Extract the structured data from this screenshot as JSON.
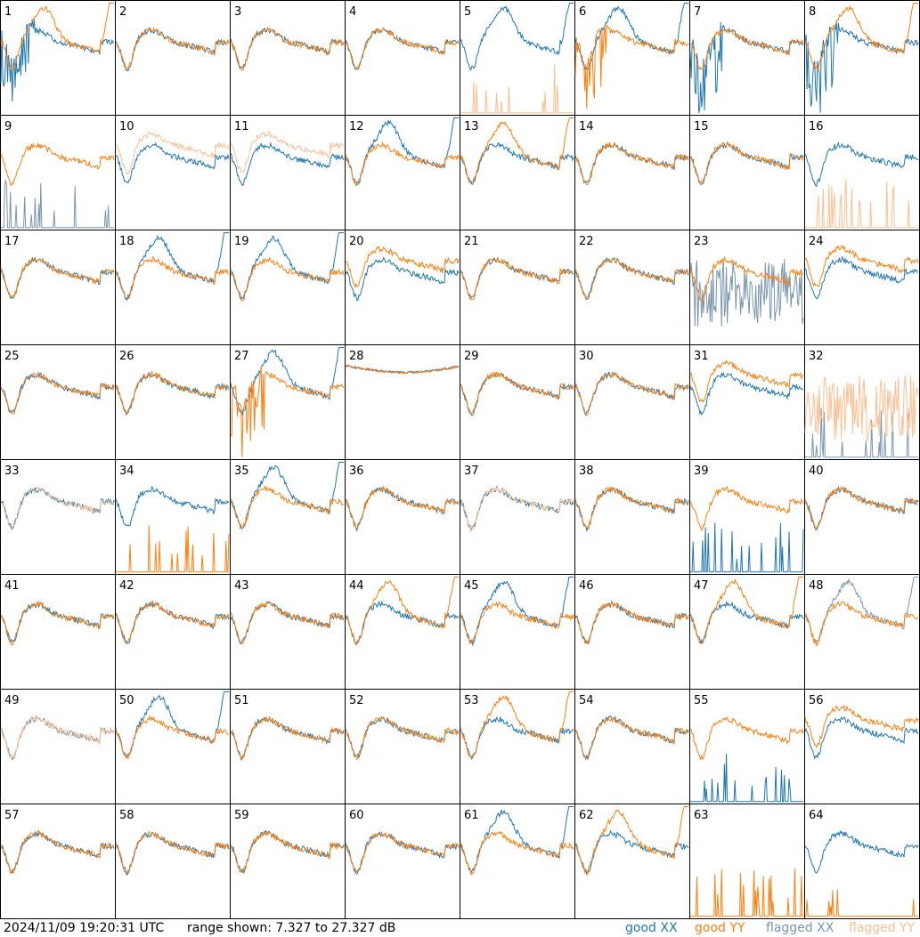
{
  "footer": {
    "timestamp": "2024/11/09 19:20:31 UTC",
    "range_label": "range shown: 7.327 to 27.327 dB",
    "legend": {
      "good_xx": "good XX",
      "good_yy": "good YY",
      "flagged_xx": "flagged XX",
      "flagged_yy": "flagged YY"
    }
  },
  "colors": {
    "good_xx": "#1f77b4",
    "good_yy": "#ff7f0e",
    "flagged_xx": "#7a96ad",
    "flagged_yy": "#fdbf91",
    "panel_border": "#000000"
  },
  "chart_data": {
    "type": "line",
    "layout": "8x8 small multiples",
    "y_range_db": [
      7.327,
      27.327
    ],
    "panels": [
      {
        "id": 1,
        "xx": "good",
        "yy": "good",
        "shape": [
          "spiky",
          "dip"
        ]
      },
      {
        "id": 2,
        "xx": "good",
        "yy": "good",
        "shape": [
          "normal",
          "normal"
        ]
      },
      {
        "id": 3,
        "xx": "good",
        "yy": "good",
        "shape": [
          "normal",
          "normal"
        ]
      },
      {
        "id": 4,
        "xx": "good",
        "yy": "good",
        "shape": [
          "normal",
          "normal"
        ]
      },
      {
        "id": 5,
        "xx": "good",
        "yy": "flagged",
        "shape": [
          "dip",
          "dead"
        ]
      },
      {
        "id": 6,
        "xx": "good",
        "yy": "good",
        "shape": [
          "dip",
          "spiky"
        ]
      },
      {
        "id": 7,
        "xx": "good",
        "yy": "good",
        "shape": [
          "spiky",
          "normal"
        ]
      },
      {
        "id": 8,
        "xx": "good",
        "yy": "good",
        "shape": [
          "spiky",
          "dip"
        ]
      },
      {
        "id": 9,
        "xx": "flagged",
        "yy": "good",
        "shape": [
          "dead",
          "normal"
        ]
      },
      {
        "id": 10,
        "xx": "good",
        "yy": "flagged",
        "shape": [
          "normal",
          "sag"
        ]
      },
      {
        "id": 11,
        "xx": "good",
        "yy": "flagged",
        "shape": [
          "normal",
          "sag"
        ]
      },
      {
        "id": 12,
        "xx": "good",
        "yy": "good",
        "shape": [
          "dip",
          "normal"
        ]
      },
      {
        "id": 13,
        "xx": "good",
        "yy": "good",
        "shape": [
          "normal",
          "dip"
        ]
      },
      {
        "id": 14,
        "xx": "good",
        "yy": "good",
        "shape": [
          "normal",
          "normal"
        ]
      },
      {
        "id": 15,
        "xx": "good",
        "yy": "good",
        "shape": [
          "normal",
          "normal"
        ]
      },
      {
        "id": 16,
        "xx": "good",
        "yy": "flagged",
        "shape": [
          "normal",
          "dead"
        ]
      },
      {
        "id": 17,
        "xx": "good",
        "yy": "good",
        "shape": [
          "normal",
          "normal"
        ]
      },
      {
        "id": 18,
        "xx": "good",
        "yy": "good",
        "shape": [
          "dip",
          "normal"
        ]
      },
      {
        "id": 19,
        "xx": "good",
        "yy": "good",
        "shape": [
          "dip",
          "normal"
        ]
      },
      {
        "id": 20,
        "xx": "good",
        "yy": "good",
        "shape": [
          "normal",
          "sag"
        ]
      },
      {
        "id": 21,
        "xx": "good",
        "yy": "good",
        "shape": [
          "normal",
          "normal"
        ]
      },
      {
        "id": 22,
        "xx": "good",
        "yy": "good",
        "shape": [
          "normal",
          "normal"
        ]
      },
      {
        "id": 23,
        "xx": "flagged",
        "yy": "good",
        "shape": [
          "noisy",
          "normal"
        ]
      },
      {
        "id": 24,
        "xx": "good",
        "yy": "good",
        "shape": [
          "normal",
          "sag"
        ]
      },
      {
        "id": 25,
        "xx": "good",
        "yy": "good",
        "shape": [
          "normal",
          "normal"
        ]
      },
      {
        "id": 26,
        "xx": "good",
        "yy": "good",
        "shape": [
          "normal",
          "normal"
        ]
      },
      {
        "id": 27,
        "xx": "good",
        "yy": "good",
        "shape": [
          "dip",
          "spiky"
        ]
      },
      {
        "id": 28,
        "xx": "good",
        "yy": "good",
        "shape": [
          "flat",
          "flat"
        ]
      },
      {
        "id": 29,
        "xx": "good",
        "yy": "good",
        "shape": [
          "normal",
          "normal"
        ]
      },
      {
        "id": 30,
        "xx": "good",
        "yy": "good",
        "shape": [
          "normal",
          "normal"
        ]
      },
      {
        "id": 31,
        "xx": "good",
        "yy": "good",
        "shape": [
          "normal",
          "sag"
        ]
      },
      {
        "id": 32,
        "xx": "flagged",
        "yy": "flagged",
        "shape": [
          "dead",
          "noisy"
        ]
      },
      {
        "id": 33,
        "xx": "good",
        "yy": "flagged",
        "shape": [
          "normal",
          "normal"
        ]
      },
      {
        "id": 34,
        "xx": "good",
        "yy": "good",
        "shape": [
          "normal",
          "dead"
        ]
      },
      {
        "id": 35,
        "xx": "good",
        "yy": "good",
        "shape": [
          "dip",
          "normal"
        ]
      },
      {
        "id": 36,
        "xx": "good",
        "yy": "good",
        "shape": [
          "normal",
          "normal"
        ]
      },
      {
        "id": 37,
        "xx": "good",
        "yy": "flagged",
        "shape": [
          "normal",
          "normal"
        ]
      },
      {
        "id": 38,
        "xx": "good",
        "yy": "good",
        "shape": [
          "normal",
          "normal"
        ]
      },
      {
        "id": 39,
        "xx": "good",
        "yy": "good",
        "shape": [
          "dead",
          "normal"
        ]
      },
      {
        "id": 40,
        "xx": "good",
        "yy": "good",
        "shape": [
          "normal",
          "normal"
        ]
      },
      {
        "id": 41,
        "xx": "good",
        "yy": "good",
        "shape": [
          "normal",
          "normal"
        ]
      },
      {
        "id": 42,
        "xx": "good",
        "yy": "good",
        "shape": [
          "normal",
          "normal"
        ]
      },
      {
        "id": 43,
        "xx": "good",
        "yy": "good",
        "shape": [
          "normal",
          "normal"
        ]
      },
      {
        "id": 44,
        "xx": "good",
        "yy": "good",
        "shape": [
          "normal",
          "dip"
        ]
      },
      {
        "id": 45,
        "xx": "good",
        "yy": "good",
        "shape": [
          "dip",
          "normal"
        ]
      },
      {
        "id": 46,
        "xx": "good",
        "yy": "good",
        "shape": [
          "normal",
          "normal"
        ]
      },
      {
        "id": 47,
        "xx": "good",
        "yy": "good",
        "shape": [
          "normal",
          "dip"
        ]
      },
      {
        "id": 48,
        "xx": "flagged",
        "yy": "good",
        "shape": [
          "dip",
          "normal"
        ]
      },
      {
        "id": 49,
        "xx": "flagged",
        "yy": "flagged",
        "shape": [
          "normal",
          "normal"
        ]
      },
      {
        "id": 50,
        "xx": "good",
        "yy": "good",
        "shape": [
          "dip",
          "normal"
        ]
      },
      {
        "id": 51,
        "xx": "good",
        "yy": "good",
        "shape": [
          "normal",
          "normal"
        ]
      },
      {
        "id": 52,
        "xx": "good",
        "yy": "good",
        "shape": [
          "normal",
          "normal"
        ]
      },
      {
        "id": 53,
        "xx": "good",
        "yy": "good",
        "shape": [
          "normal",
          "dip"
        ]
      },
      {
        "id": 54,
        "xx": "good",
        "yy": "good",
        "shape": [
          "normal",
          "normal"
        ]
      },
      {
        "id": 55,
        "xx": "good",
        "yy": "good",
        "shape": [
          "dead",
          "normal"
        ]
      },
      {
        "id": 56,
        "xx": "good",
        "yy": "good",
        "shape": [
          "normal",
          "sag"
        ]
      },
      {
        "id": 57,
        "xx": "good",
        "yy": "good",
        "shape": [
          "normal",
          "normal"
        ]
      },
      {
        "id": 58,
        "xx": "good",
        "yy": "good",
        "shape": [
          "normal",
          "normal"
        ]
      },
      {
        "id": 59,
        "xx": "good",
        "yy": "good",
        "shape": [
          "normal",
          "normal"
        ]
      },
      {
        "id": 60,
        "xx": "good",
        "yy": "good",
        "shape": [
          "normal",
          "normal"
        ]
      },
      {
        "id": 61,
        "xx": "good",
        "yy": "good",
        "shape": [
          "dip",
          "normal"
        ]
      },
      {
        "id": 62,
        "xx": "good",
        "yy": "good",
        "shape": [
          "normal",
          "dip"
        ]
      },
      {
        "id": 63,
        "xx": "good",
        "yy": "good",
        "shape": [
          "none",
          "dead"
        ]
      },
      {
        "id": 64,
        "xx": "good",
        "yy": "good",
        "shape": [
          "normal",
          "dead"
        ]
      }
    ]
  }
}
